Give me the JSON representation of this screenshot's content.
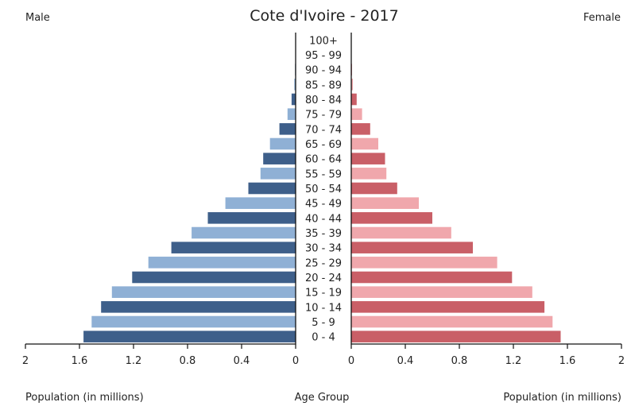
{
  "chart_data": {
    "type": "bar",
    "orientation": "horizontal",
    "title": "Cote d'Ivoire - 2017",
    "left_label": "Male",
    "right_label": "Female",
    "center_label": "Age Group",
    "xlabel_left": "Population (in millions)",
    "xlabel_right": "Population (in millions)",
    "xlim": [
      0,
      2
    ],
    "ticks_left": [
      "2",
      "1.6",
      "1.2",
      "0.8",
      "0.4",
      "0"
    ],
    "ticks_right": [
      "0",
      "0.4",
      "0.8",
      "1.2",
      "1.6",
      "2"
    ],
    "tick_values": [
      0,
      0.4,
      0.8,
      1.2,
      1.6,
      2
    ],
    "categories": [
      "100+",
      "95 - 99",
      "90 - 94",
      "85 - 89",
      "80 - 84",
      "75 - 79",
      "70 - 74",
      "65 - 69",
      "60 - 64",
      "55 - 59",
      "50 - 54",
      "45 - 49",
      "40 - 44",
      "35 - 39",
      "30 - 34",
      "25 - 29",
      "20 - 24",
      "15 - 19",
      "10 - 14",
      "5 - 9",
      "0 - 4"
    ],
    "series": [
      {
        "name": "Male",
        "side": "left",
        "values": [
          0.001,
          0.002,
          0.004,
          0.01,
          0.03,
          0.06,
          0.12,
          0.19,
          0.24,
          0.26,
          0.35,
          0.52,
          0.65,
          0.77,
          0.92,
          1.09,
          1.21,
          1.36,
          1.44,
          1.51,
          1.57
        ],
        "colors": [
          "#3e5f8a",
          "#8fb0d5"
        ]
      },
      {
        "name": "Female",
        "side": "right",
        "values": [
          0.001,
          0.002,
          0.005,
          0.012,
          0.04,
          0.08,
          0.14,
          0.2,
          0.25,
          0.26,
          0.34,
          0.5,
          0.6,
          0.74,
          0.9,
          1.08,
          1.19,
          1.34,
          1.43,
          1.49,
          1.55
        ],
        "colors": [
          "#c95f67",
          "#f0a7ac"
        ]
      }
    ]
  }
}
